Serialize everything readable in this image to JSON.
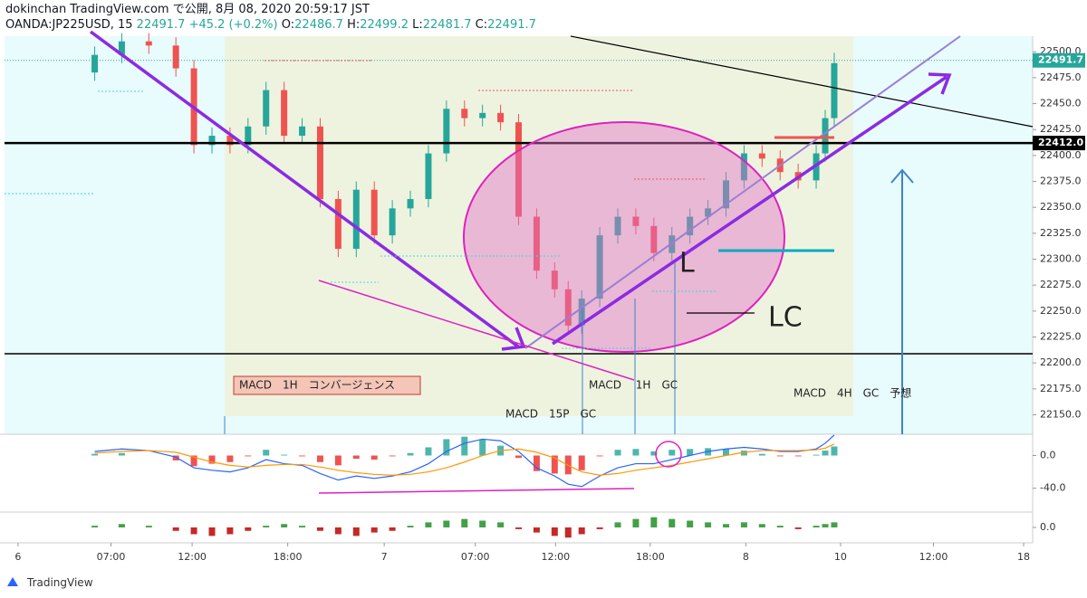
{
  "header": {
    "line1": "dokinchan TradingView.com で公開, 8月 08, 2020 20:59:17 JST",
    "symbol": "OANDA:JP225USD, 15",
    "last": "22491.7",
    "change": "+45.2 (+0.2%)",
    "o_label": "O:",
    "o": "22486.7",
    "h_label": "H:",
    "h": "22499.2",
    "l_label": "L:",
    "l": "22481.7",
    "c_label": "C:",
    "c": "22491.7"
  },
  "footer": "TradingView",
  "chart_data": [
    {
      "type": "candlestick",
      "up_color": "#26a69a",
      "down_color": "#ef5350",
      "x": [
        10,
        13,
        16,
        19,
        21,
        23,
        25,
        27,
        29,
        31,
        33,
        35,
        37,
        39,
        41,
        43,
        45,
        47,
        49,
        51,
        53,
        55,
        57,
        59,
        61,
        62.5,
        64,
        66,
        68,
        70,
        72,
        74,
        76,
        78,
        80,
        82,
        84,
        86,
        88,
        90,
        91,
        92
      ],
      "open": [
        22480,
        22497,
        22510,
        22506,
        22484,
        22410,
        22419,
        22410,
        22428,
        22463,
        22419,
        22428,
        22358,
        22310,
        22367,
        22323,
        22349,
        22358,
        22402,
        22445,
        22436,
        22441,
        22432,
        22341,
        22289,
        22271,
        22236,
        22262,
        22323,
        22341,
        22332,
        22306,
        22323,
        22341,
        22349,
        22376,
        22402,
        22397,
        22384,
        22376,
        22402,
        22436
      ],
      "high": [
        22505,
        22518,
        22518,
        22514,
        22492,
        22427,
        22427,
        22436,
        22471,
        22471,
        22436,
        22436,
        22366,
        22375,
        22375,
        22357,
        22366,
        22410,
        22453,
        22453,
        22449,
        22449,
        22440,
        22349,
        22297,
        22279,
        22270,
        22331,
        22349,
        22349,
        22340,
        22331,
        22349,
        22357,
        22384,
        22410,
        22410,
        22405,
        22392,
        22410,
        22444,
        22499
      ],
      "low": [
        22472,
        22489,
        22498,
        22476,
        22402,
        22402,
        22402,
        22402,
        22420,
        22411,
        22411,
        22350,
        22302,
        22302,
        22315,
        22315,
        22341,
        22350,
        22394,
        22428,
        22428,
        22424,
        22333,
        22281,
        22263,
        22228,
        22228,
        22254,
        22315,
        22324,
        22298,
        22298,
        22315,
        22333,
        22341,
        22368,
        22389,
        22376,
        22368,
        22368,
        22394,
        22428
      ],
      "close": [
        22497,
        22510,
        22506,
        22484,
        22410,
        22419,
        22410,
        22428,
        22463,
        22419,
        22428,
        22358,
        22310,
        22367,
        22323,
        22349,
        22358,
        22402,
        22445,
        22436,
        22441,
        22432,
        22341,
        22289,
        22271,
        22236,
        22262,
        22323,
        22341,
        22332,
        22306,
        22323,
        22341,
        22349,
        22376,
        22402,
        22397,
        22384,
        22376,
        22402,
        22436,
        22489
      ],
      "xlim": [
        0,
        114
      ],
      "xticks": [
        {
          "value": 1.5,
          "label": "6"
        },
        {
          "value": 11.8,
          "label": "07:00"
        },
        {
          "value": 20.8,
          "label": "12:00"
        },
        {
          "value": 31.4,
          "label": "18:00"
        },
        {
          "value": 42.1,
          "label": "7"
        },
        {
          "value": 52.2,
          "label": "07:00"
        },
        {
          "value": 61.1,
          "label": "12:00"
        },
        {
          "value": 71.6,
          "label": "18:00"
        },
        {
          "value": 82.2,
          "label": "8"
        },
        {
          "value": 92.7,
          "label": "10"
        },
        {
          "value": 103,
          "label": "12:00"
        },
        {
          "value": 113,
          "label": "18"
        }
      ],
      "ylim": [
        22133,
        22515
      ],
      "yticks": [
        {
          "value": 22150,
          "label": "22150.0"
        },
        {
          "value": 22175,
          "label": "22175.0"
        },
        {
          "value": 22200,
          "label": "22200.0"
        },
        {
          "value": 22225,
          "label": "22225.0"
        },
        {
          "value": 22250,
          "label": "22250.0"
        },
        {
          "value": 22275,
          "label": "22275.0"
        },
        {
          "value": 22300,
          "label": "22300.0"
        },
        {
          "value": 22325,
          "label": "22325.0"
        },
        {
          "value": 22350,
          "label": "22350.0"
        },
        {
          "value": 22375,
          "label": "22375.0"
        },
        {
          "value": 22400,
          "label": "22400.0"
        },
        {
          "value": 22425,
          "label": "22425.0"
        },
        {
          "value": 22450,
          "label": "22450.0"
        },
        {
          "value": 22475,
          "label": "22475.0"
        },
        {
          "value": 22500,
          "label": "22500.0"
        }
      ],
      "price_labels": [
        {
          "value": 22491.7,
          "label": "22491.7",
          "color": "#26a69a"
        },
        {
          "value": 22412,
          "label": "22412.0",
          "color": "#000000"
        }
      ],
      "annotations": [
        "MACD　1H　コンバージェンス",
        "MACD　 1H　GC",
        "MACD　15P　GC",
        "MACD　4H　GC　予想",
        "L",
        "LC"
      ]
    },
    {
      "type": "combo",
      "ylim": [
        -68,
        26
      ],
      "yticks": [
        {
          "value": 0,
          "label": "0.0"
        },
        {
          "value": -40,
          "label": "-40.0"
        }
      ],
      "series": [
        {
          "type": "bar",
          "up_color": "#4db6ac",
          "down_color": "#ef5350",
          "values": [
            2,
            3,
            0,
            -6,
            -13,
            -10,
            -8,
            -1,
            7,
            1,
            -1,
            -8,
            -12,
            -4,
            -5,
            -1,
            3,
            10,
            20,
            23,
            20,
            12,
            -3,
            -19,
            -22,
            -23,
            -18,
            -1,
            7,
            8,
            5,
            7,
            8,
            9,
            8,
            6,
            2,
            -1,
            -1,
            1,
            6,
            11
          ]
        },
        {
          "type": "line",
          "color": "#2962ff",
          "values": [
            5,
            8,
            6,
            -2,
            -15,
            -18,
            -20,
            -15,
            -5,
            -10,
            -12,
            -22,
            -30,
            -25,
            -28,
            -25,
            -20,
            -10,
            5,
            15,
            20,
            18,
            5,
            -15,
            -25,
            -35,
            -38,
            -25,
            -15,
            -10,
            -10,
            -5,
            0,
            5,
            8,
            10,
            8,
            5,
            5,
            8,
            15,
            25
          ]
        },
        {
          "type": "line",
          "color": "#ff9800",
          "values": [
            3,
            5,
            6,
            4,
            -2,
            -8,
            -12,
            -14,
            -12,
            -11,
            -11,
            -14,
            -18,
            -21,
            -23,
            -24,
            -23,
            -20,
            -15,
            -8,
            0,
            6,
            8,
            4,
            -3,
            -12,
            -20,
            -24,
            -22,
            -18,
            -15,
            -12,
            -8,
            -4,
            0,
            4,
            6,
            6,
            6,
            7,
            9,
            14
          ]
        }
      ]
    },
    {
      "type": "bar",
      "up_color": "#43a047",
      "down_color": "#c62828",
      "ylim": [
        -8,
        8
      ],
      "yticks": [
        {
          "value": 0,
          "label": "0.0"
        }
      ],
      "values": [
        1,
        2,
        1,
        -2,
        -4,
        -5,
        -4,
        -2,
        1,
        2,
        1,
        -2,
        -4,
        -5,
        -3,
        -2,
        1,
        3,
        4,
        5,
        4,
        3,
        -1,
        -3,
        -5,
        -6,
        -4,
        -1,
        3,
        5,
        6,
        5,
        4,
        3,
        2,
        3,
        2,
        1,
        -1,
        1,
        2,
        3
      ]
    }
  ]
}
